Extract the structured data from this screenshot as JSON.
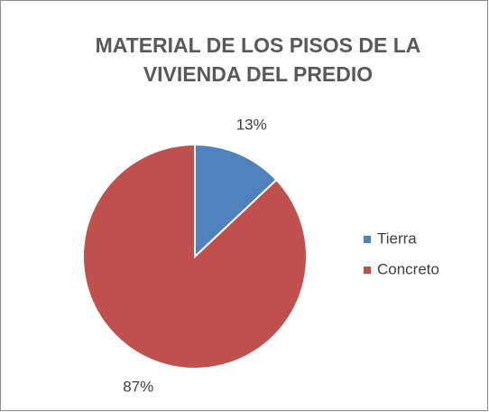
{
  "chart_data": {
    "type": "pie",
    "title": [
      "MATERIAL DE LOS PISOS DE LA",
      "VIVIENDA DEL PREDIO"
    ],
    "categories": [
      "Tierra",
      "Concreto"
    ],
    "values": [
      13,
      87
    ],
    "value_labels": [
      "13%",
      "87%"
    ],
    "colors": [
      "#4f81bd",
      "#c0504d"
    ],
    "legend": "right"
  }
}
